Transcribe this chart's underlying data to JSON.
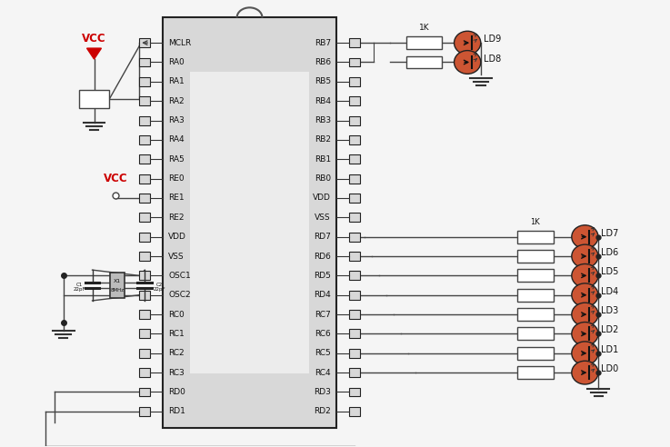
{
  "bg_color": "#f5f5f5",
  "ic_left_pins": [
    "MCLR",
    "RA0",
    "RA1",
    "RA2",
    "RA3",
    "RA4",
    "RA5",
    "RE0",
    "RE1",
    "RE2",
    "VDD",
    "VSS",
    "OSC1",
    "OSC2",
    "RC0",
    "RC1",
    "RC2",
    "RC3",
    "RD0",
    "RD1"
  ],
  "ic_right_pins": [
    "RB7",
    "RB6",
    "RB5",
    "RB4",
    "RB3",
    "RB2",
    "RB1",
    "RB0",
    "VDD",
    "VSS",
    "RD7",
    "RD6",
    "RD5",
    "RD4",
    "RC7",
    "RC6",
    "RC5",
    "RC4",
    "RD3",
    "RD2"
  ],
  "vcc_color": "#cc0000",
  "wire_color": "#444444",
  "led_body_color": "#cc5533",
  "resistor_color": "#ffffff",
  "resistor_outline": "#444444",
  "text_color": "#111111",
  "ic_facecolor": "#d8d8d8",
  "ic_window_color": "#f0f0f0",
  "pin_box_color": "#333333"
}
